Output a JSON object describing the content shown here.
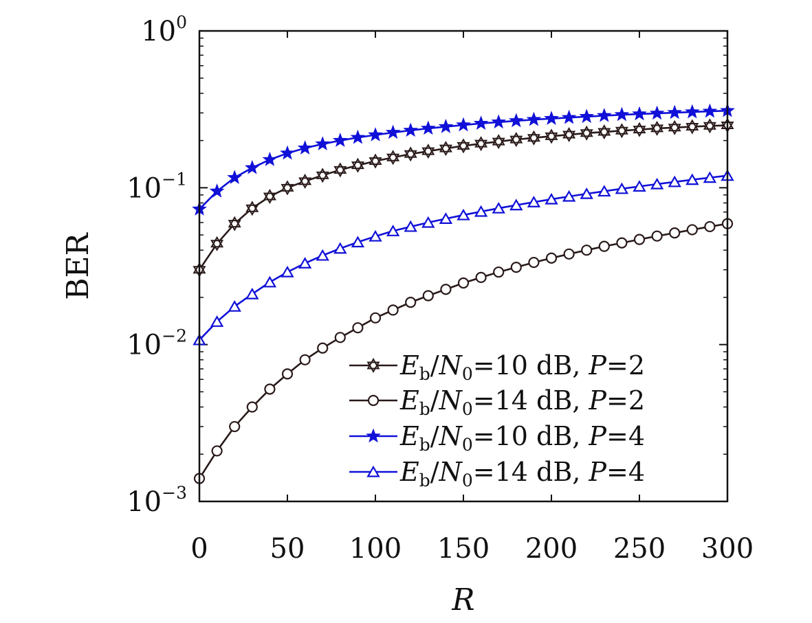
{
  "chart_data": {
    "type": "line",
    "xlabel": "R",
    "ylabel": "BER",
    "xlim": [
      0,
      300
    ],
    "ylim": [
      0.001,
      1
    ],
    "yscale": "log",
    "grid": false,
    "legend_position": "bottom-right",
    "x_ticks": [
      "0",
      "50",
      "100",
      "150",
      "200",
      "250",
      "300"
    ],
    "y_ticks": [
      {
        "base": "10",
        "exp": "−3",
        "value": 0.001
      },
      {
        "base": "10",
        "exp": "−2",
        "value": 0.01
      },
      {
        "base": "10",
        "exp": "−1",
        "value": 0.1
      },
      {
        "base": "10",
        "exp": "0",
        "value": 1
      }
    ],
    "x": [
      0,
      10,
      20,
      30,
      40,
      50,
      60,
      70,
      80,
      90,
      100,
      110,
      120,
      130,
      140,
      150,
      160,
      170,
      180,
      190,
      200,
      210,
      220,
      230,
      240,
      250,
      260,
      270,
      280,
      290,
      300
    ],
    "series": [
      {
        "legend": {
          "e": "E",
          "b": "b",
          "n": "N",
          "zero": "0",
          "value": "=10 dB, ",
          "p": "P",
          "pval": "=2"
        },
        "marker": "hexagram",
        "color": "#2a1a1a",
        "values": [
          0.03,
          0.044,
          0.059,
          0.074,
          0.088,
          0.1,
          0.11,
          0.12,
          0.13,
          0.139,
          0.148,
          0.156,
          0.164,
          0.171,
          0.178,
          0.185,
          0.191,
          0.197,
          0.203,
          0.208,
          0.213,
          0.218,
          0.223,
          0.227,
          0.231,
          0.235,
          0.239,
          0.242,
          0.245,
          0.248,
          0.25
        ]
      },
      {
        "legend": {
          "e": "E",
          "b": "b",
          "n": "N",
          "zero": "0",
          "value": "=14 dB, ",
          "p": "P",
          "pval": "=2"
        },
        "marker": "circle",
        "color": "#2a1a1a",
        "values": [
          0.0014,
          0.0021,
          0.003,
          0.004,
          0.0052,
          0.0065,
          0.008,
          0.0095,
          0.0111,
          0.0128,
          0.0148,
          0.0166,
          0.0186,
          0.0205,
          0.0225,
          0.0247,
          0.0268,
          0.029,
          0.0311,
          0.0334,
          0.0356,
          0.0378,
          0.04,
          0.0423,
          0.0445,
          0.0468,
          0.0492,
          0.0515,
          0.054,
          0.0565,
          0.059
        ]
      },
      {
        "legend": {
          "e": "E",
          "b": "b",
          "n": "N",
          "zero": "0",
          "value": "=10 dB, ",
          "p": "P",
          "pval": "=4"
        },
        "marker": "star",
        "color": "#1010d8",
        "values": [
          0.073,
          0.095,
          0.116,
          0.134,
          0.151,
          0.166,
          0.179,
          0.19,
          0.2,
          0.209,
          0.217,
          0.225,
          0.232,
          0.239,
          0.245,
          0.251,
          0.257,
          0.262,
          0.267,
          0.272,
          0.276,
          0.28,
          0.284,
          0.288,
          0.292,
          0.295,
          0.298,
          0.301,
          0.304,
          0.307,
          0.31
        ]
      },
      {
        "legend": {
          "e": "E",
          "b": "b",
          "n": "N",
          "zero": "0",
          "value": "=14 dB, ",
          "p": "P",
          "pval": "=4"
        },
        "marker": "triangle",
        "color": "#1010d8",
        "values": [
          0.0107,
          0.014,
          0.0175,
          0.021,
          0.025,
          0.029,
          0.033,
          0.037,
          0.041,
          0.045,
          0.049,
          0.053,
          0.0565,
          0.06,
          0.0635,
          0.067,
          0.0705,
          0.074,
          0.0775,
          0.081,
          0.0845,
          0.088,
          0.0915,
          0.095,
          0.0985,
          0.102,
          0.1055,
          0.109,
          0.1125,
          0.116,
          0.1195
        ]
      }
    ]
  }
}
